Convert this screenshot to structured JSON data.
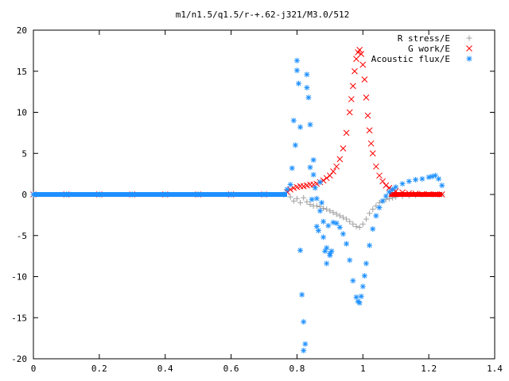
{
  "chart_data": {
    "type": "scatter",
    "title": "m1/n1.5/q1.5/r-+.62-j321/M3.0/512",
    "xlabel": "",
    "ylabel": "",
    "xlim": [
      0,
      1.4
    ],
    "ylim": [
      -20,
      20
    ],
    "xticks": [
      0,
      0.2,
      0.4,
      0.6,
      0.8,
      1,
      1.2,
      1.4
    ],
    "xtick_labels": [
      "0",
      "0.2",
      "0.4",
      "0.6",
      "0.8",
      "1",
      "1.2",
      "1.4"
    ],
    "yticks": [
      -20,
      -15,
      -10,
      -5,
      0,
      5,
      10,
      15,
      20
    ],
    "ytick_labels": [
      "-20",
      "-15",
      "-10",
      "-5",
      "0",
      "5",
      "10",
      "15",
      "20"
    ],
    "grid": false,
    "legend_position": "top-right",
    "series": [
      {
        "name": "R stress/E",
        "marker": "plus",
        "color": "#a0a0a0",
        "x": [
          0.0,
          0.1,
          0.2,
          0.3,
          0.4,
          0.5,
          0.6,
          0.7,
          0.76,
          0.78,
          0.79,
          0.8,
          0.81,
          0.82,
          0.83,
          0.84,
          0.85,
          0.86,
          0.87,
          0.88,
          0.89,
          0.9,
          0.91,
          0.92,
          0.93,
          0.94,
          0.95,
          0.96,
          0.97,
          0.98,
          0.99,
          1.0,
          1.01,
          1.02,
          1.03,
          1.04,
          1.05,
          1.06,
          1.07,
          1.08,
          1.09,
          1.1,
          1.12,
          1.14,
          1.16,
          1.18,
          1.2,
          1.22,
          1.24
        ],
        "y": [
          0,
          0,
          0,
          0,
          0,
          0,
          0,
          0,
          0,
          -0.3,
          -0.8,
          -0.5,
          -1.0,
          -0.4,
          -0.9,
          -1.2,
          -1.4,
          -1.4,
          -1.5,
          -1.7,
          -1.8,
          -2.0,
          -2.2,
          -2.4,
          -2.6,
          -2.8,
          -3.0,
          -3.3,
          -3.6,
          -3.9,
          -4.0,
          -3.6,
          -3.0,
          -2.3,
          -1.8,
          -1.4,
          -1.0,
          -0.8,
          -0.6,
          -0.5,
          -0.4,
          -0.3,
          -0.2,
          -0.15,
          -0.1,
          -0.05,
          0,
          0,
          0
        ]
      },
      {
        "name": "G work/E",
        "marker": "cross",
        "color": "#ff0000",
        "x": [
          0.0,
          0.1,
          0.2,
          0.3,
          0.4,
          0.5,
          0.6,
          0.7,
          0.77,
          0.78,
          0.79,
          0.8,
          0.81,
          0.82,
          0.83,
          0.84,
          0.85,
          0.86,
          0.87,
          0.88,
          0.89,
          0.9,
          0.91,
          0.92,
          0.93,
          0.94,
          0.95,
          0.96,
          0.965,
          0.97,
          0.975,
          0.98,
          0.985,
          0.99,
          0.995,
          1.0,
          1.005,
          1.01,
          1.015,
          1.02,
          1.025,
          1.03,
          1.04,
          1.05,
          1.06,
          1.07,
          1.08,
          1.09,
          1.1,
          1.12,
          1.14,
          1.16,
          1.18,
          1.2,
          1.22,
          1.24
        ],
        "y": [
          0,
          0,
          0,
          0,
          0,
          0,
          0,
          0,
          0.3,
          0.6,
          0.8,
          0.9,
          1.0,
          1.0,
          1.1,
          1.2,
          1.2,
          1.3,
          1.5,
          1.7,
          2.0,
          2.3,
          2.8,
          3.4,
          4.3,
          5.6,
          7.5,
          10.0,
          11.6,
          13.2,
          15.0,
          16.5,
          17.3,
          17.6,
          17.1,
          15.8,
          14.0,
          11.8,
          9.6,
          7.8,
          6.2,
          5.0,
          3.4,
          2.3,
          1.6,
          1.1,
          0.8,
          0.6,
          0.4,
          0.25,
          0.15,
          0.1,
          0.05,
          0.03,
          0.02,
          0.01
        ]
      },
      {
        "name": "Acoustic flux/E",
        "marker": "star",
        "color": "#1e90ff",
        "x": [
          0.0,
          0.1,
          0.2,
          0.3,
          0.4,
          0.5,
          0.6,
          0.7,
          0.76,
          0.77,
          0.78,
          0.785,
          0.79,
          0.795,
          0.8,
          0.8,
          0.805,
          0.81,
          0.81,
          0.815,
          0.82,
          0.82,
          0.825,
          0.83,
          0.83,
          0.835,
          0.84,
          0.84,
          0.845,
          0.85,
          0.85,
          0.855,
          0.86,
          0.86,
          0.865,
          0.87,
          0.87,
          0.875,
          0.88,
          0.88,
          0.885,
          0.89,
          0.89,
          0.895,
          0.9,
          0.9,
          0.905,
          0.91,
          0.92,
          0.93,
          0.94,
          0.95,
          0.96,
          0.97,
          0.98,
          0.985,
          0.99,
          0.995,
          1.0,
          1.005,
          1.01,
          1.02,
          1.03,
          1.04,
          1.05,
          1.06,
          1.07,
          1.08,
          1.09,
          1.1,
          1.12,
          1.14,
          1.16,
          1.18,
          1.2,
          1.21,
          1.22,
          1.23,
          1.24
        ],
        "y": [
          0,
          0,
          0,
          0,
          0,
          0,
          0,
          0,
          0,
          0.6,
          1.2,
          3.2,
          9.0,
          6.0,
          16.3,
          15.1,
          13.5,
          8.2,
          -6.8,
          -12.2,
          -19.0,
          -15.5,
          -18.2,
          14.6,
          13.0,
          11.8,
          8.5,
          3.3,
          -0.6,
          2.4,
          4.2,
          0.8,
          -0.5,
          -3.9,
          -4.4,
          -2.0,
          1.5,
          -1.0,
          -3.3,
          -5.2,
          -6.9,
          -6.5,
          -8.4,
          -3.8,
          -7.2,
          -7.4,
          -6.9,
          -3.4,
          -3.5,
          -4.0,
          -4.8,
          -6.0,
          -8.0,
          -10.5,
          -12.5,
          -13.0,
          -13.2,
          -12.4,
          -11.2,
          -9.9,
          -8.4,
          -6.2,
          -4.2,
          -2.6,
          -1.6,
          -0.8,
          -0.2,
          0.3,
          0.6,
          0.9,
          1.3,
          1.6,
          1.8,
          1.9,
          2.1,
          2.2,
          2.3,
          1.9,
          1.1
        ]
      }
    ]
  }
}
